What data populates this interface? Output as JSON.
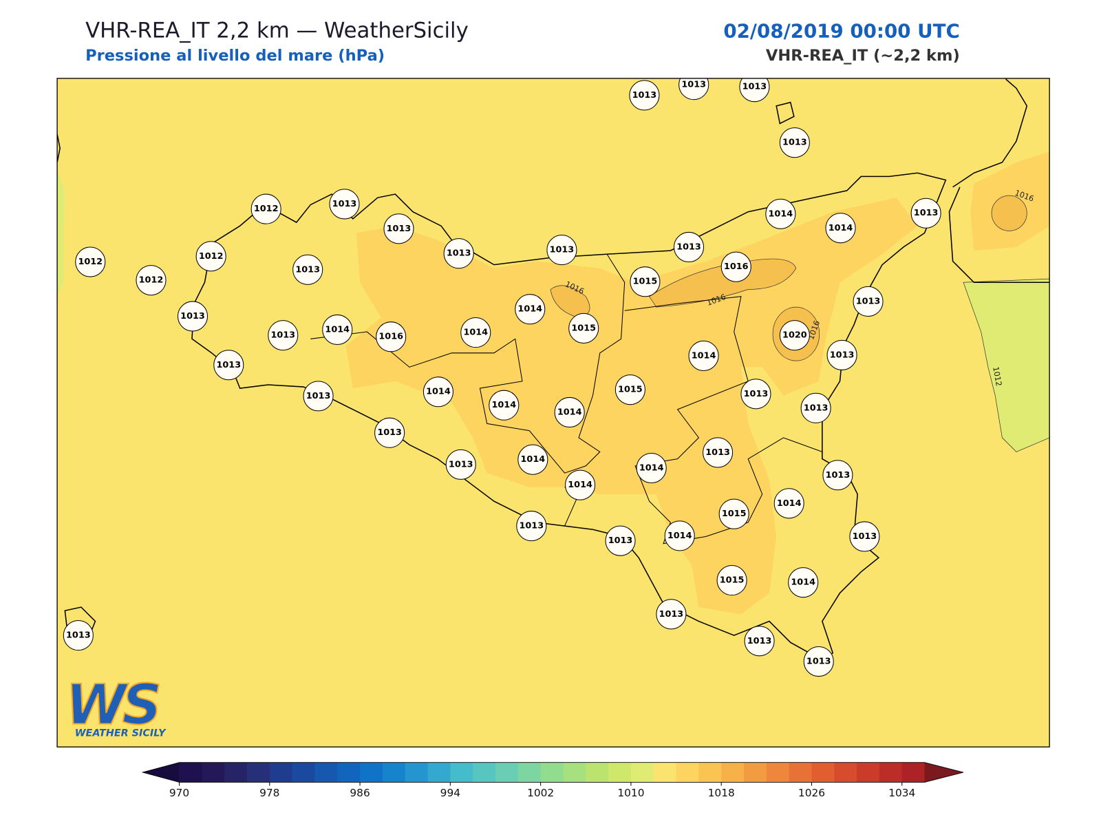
{
  "header": {
    "title": "VHR-REA_IT 2,2 km — WeatherSicily",
    "subtitle": "Pressione al livello del mare (hPa)",
    "date": "02/08/2019 00:00 UTC",
    "model": "VHR-REA_IT (~2,2 km)"
  },
  "stations": [
    1013,
    1013,
    1013,
    1013,
    1012,
    1013,
    1013,
    1013,
    1013,
    1013,
    1014,
    1014,
    1013,
    1012,
    1012,
    1012,
    1013,
    1015,
    1016,
    1013,
    1013,
    1014,
    1016,
    1014,
    1014,
    1015,
    1013,
    1013,
    1014,
    1020,
    1013,
    1013,
    1014,
    1014,
    1014,
    1015,
    1013,
    1013,
    1013,
    1013,
    1014,
    1014,
    1014,
    1013,
    1013,
    1015,
    1014,
    1013,
    1013,
    1014,
    1013,
    1015,
    1014,
    1013,
    1013,
    1013,
    1013
  ],
  "contour_labels": [
    1016,
    1016,
    1016,
    1016,
    1012
  ],
  "logo": {
    "mark": "WS",
    "name": "WEATHER SICILY"
  },
  "colorbar": {
    "range": [
      970,
      1036
    ],
    "ticks": [
      970,
      978,
      986,
      994,
      1002,
      1010,
      1018,
      1026,
      1034
    ],
    "colors": [
      "#1f1150",
      "#241858",
      "#262466",
      "#263079",
      "#203c8e",
      "#1a4aa0",
      "#1657b0",
      "#1265bd",
      "#0f74c7",
      "#1584cc",
      "#2595d0",
      "#33a9d0",
      "#45bccb",
      "#57c6c1",
      "#69ceb4",
      "#7dd5a1",
      "#92dc8f",
      "#a7e07e",
      "#bbe46e",
      "#cfe86c",
      "#e0eb74",
      "#fbe46e",
      "#fcd45f",
      "#f9c452",
      "#f6b149",
      "#f29c42",
      "#ee873c",
      "#e87236",
      "#e15e31",
      "#d74c2d",
      "#cb3b2a",
      "#bd2d27",
      "#ad2226"
    ],
    "under_color": "#180c3e",
    "over_color": "#7a1a1e"
  }
}
